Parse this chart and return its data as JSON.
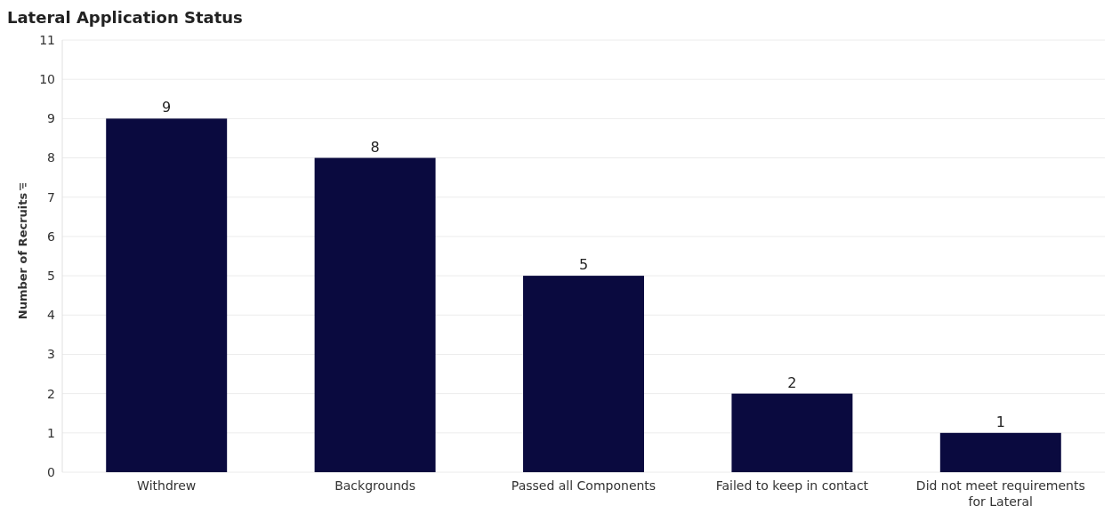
{
  "chart_data": {
    "type": "bar",
    "title": "Lateral Application Status",
    "ylabel": "Number of Recruits",
    "categories": [
      "Withdrew",
      "Backgrounds",
      "Passed all Components",
      "Failed to keep in contact",
      "Did not meet requirements for Lateral"
    ],
    "values": [
      9,
      8,
      5,
      2,
      1
    ],
    "color": "#0a0a3f",
    "data_labels": true,
    "ylim": [
      0,
      11
    ],
    "yticks": [
      0,
      1,
      2,
      3,
      4,
      5,
      6,
      7,
      8,
      9,
      10,
      11
    ],
    "grid": "y"
  }
}
